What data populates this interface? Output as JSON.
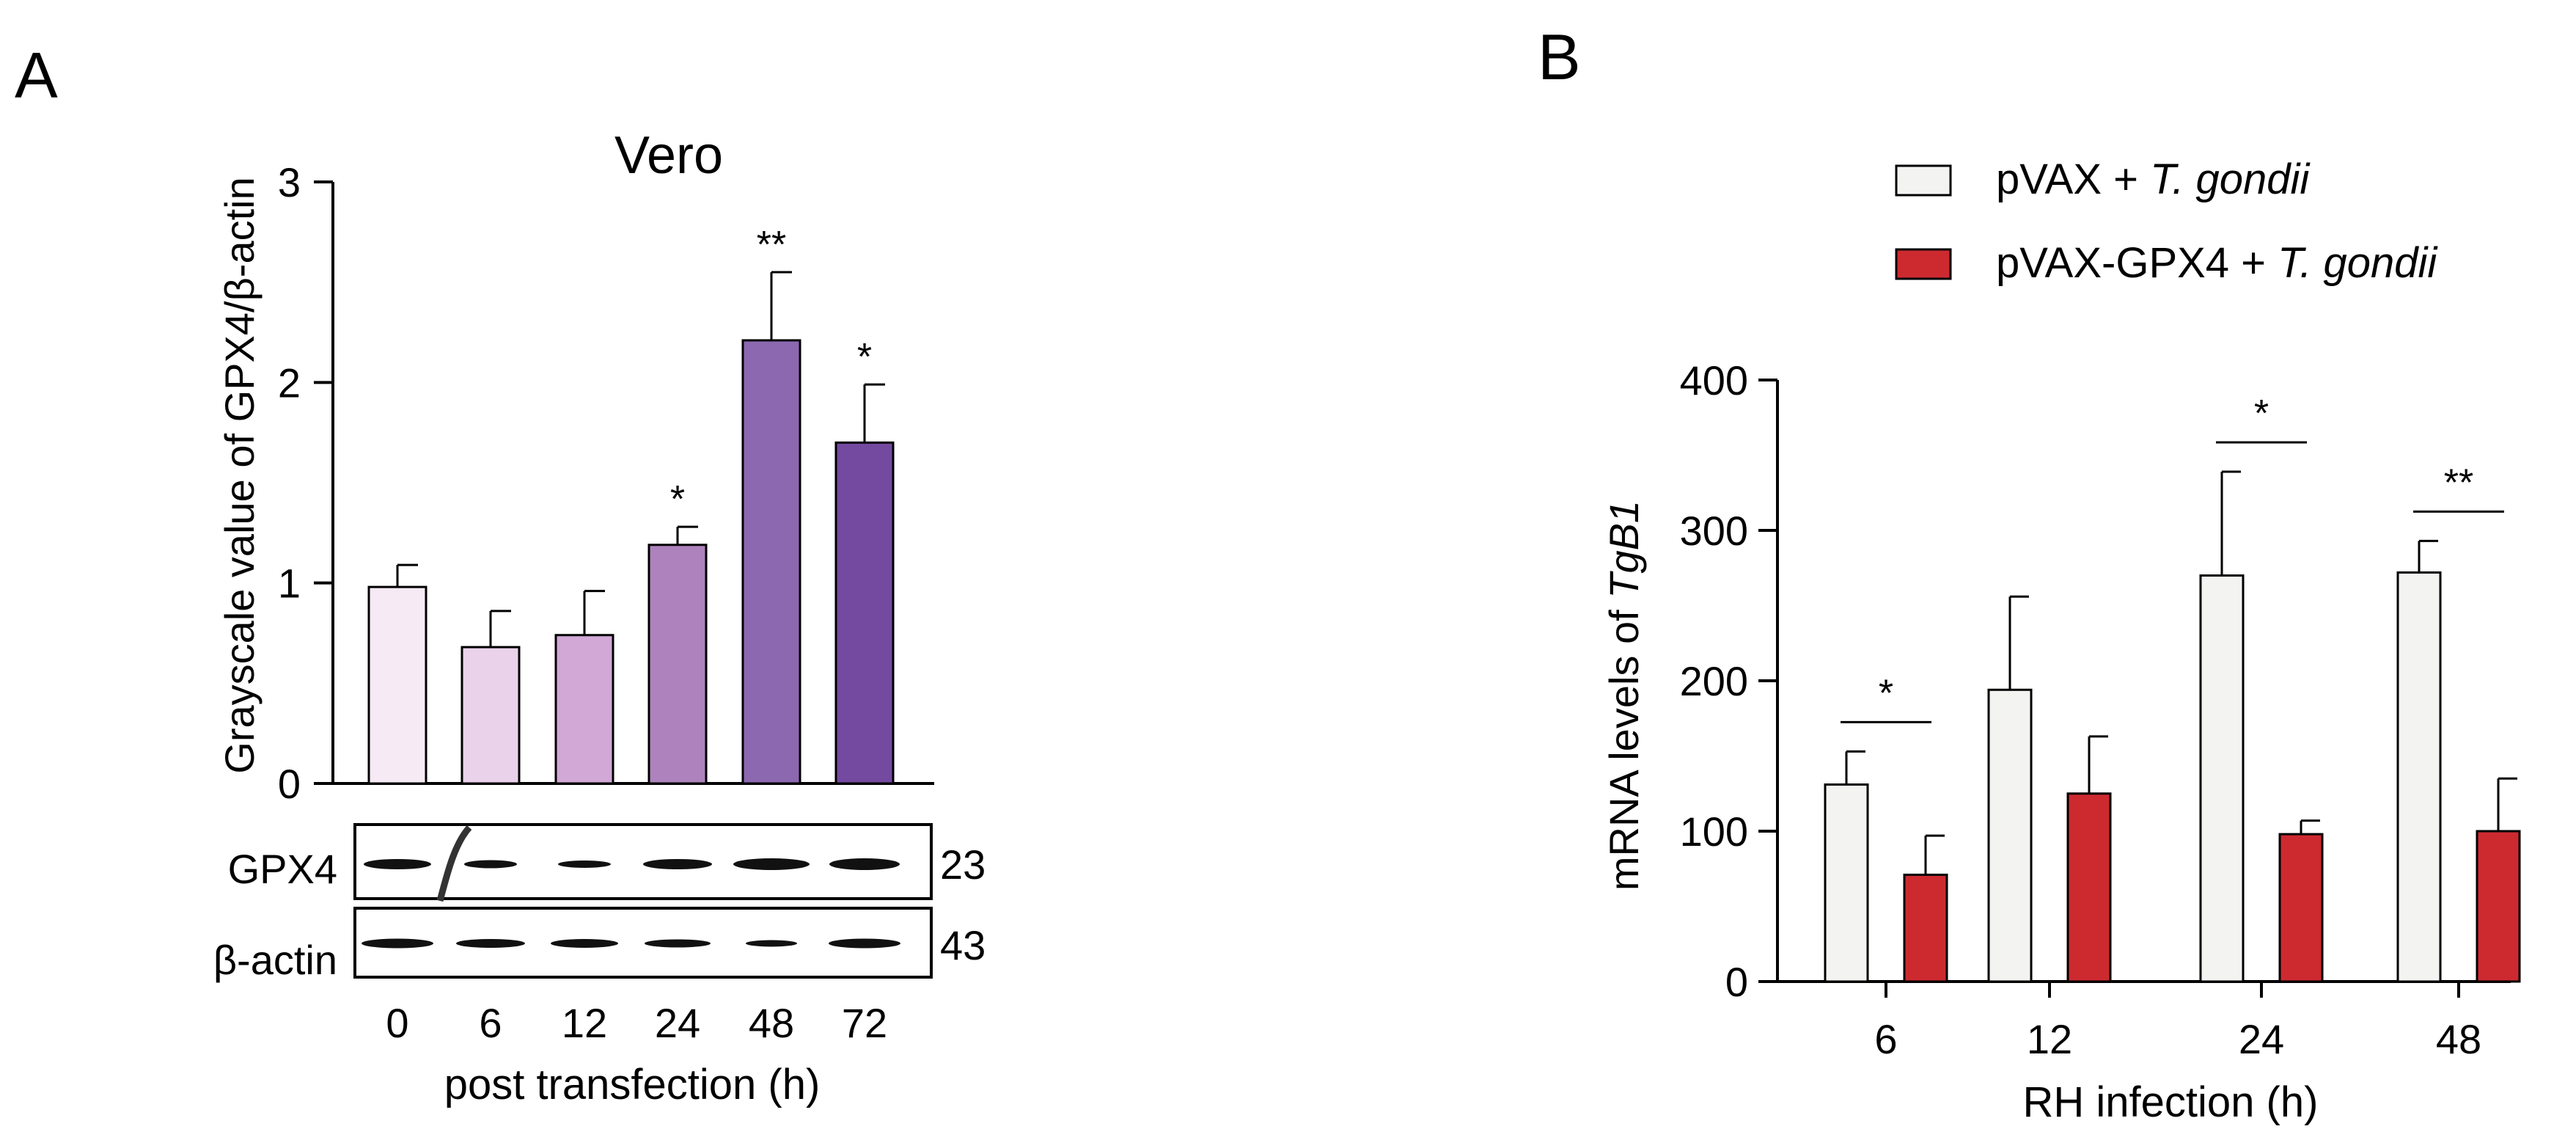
{
  "panel_labels": [
    "A",
    "B"
  ],
  "chart_data": [
    {
      "type": "bar",
      "panel": "A",
      "title": "Vero",
      "xlabel": "post transfection (h)",
      "ylabel": "Grayscale value of GPX4/β-actin",
      "categories": [
        "0",
        "6",
        "12",
        "24",
        "48",
        "72"
      ],
      "values": [
        0.98,
        0.68,
        0.74,
        1.19,
        2.21,
        1.7
      ],
      "errors": [
        0.11,
        0.18,
        0.22,
        0.09,
        0.34,
        0.29
      ],
      "significance": [
        "",
        "",
        "",
        "*",
        "**",
        "*"
      ],
      "bar_colors": [
        "#f6eaf4",
        "#ead2ea",
        "#d2a8d6",
        "#ae83bd",
        "#8c68b0",
        "#744aa0"
      ],
      "ylim": [
        0,
        3
      ],
      "yticks": [
        0,
        1,
        2,
        3
      ],
      "blot": {
        "rows": [
          {
            "label": "GPX4",
            "kda": "23"
          },
          {
            "label": "β-actin",
            "kda": "43"
          }
        ]
      }
    },
    {
      "type": "bar",
      "panel": "B",
      "title": "",
      "xlabel": "RH infection (h)",
      "ylabel_prefix": "mRNA levels of ",
      "ylabel_italic": "TgB1",
      "categories": [
        "6",
        "12",
        "24",
        "48"
      ],
      "series": [
        {
          "name_prefix": "pVAX + ",
          "name_italic": "T. gondii",
          "color": "#f3f4f2",
          "values": [
            131,
            194,
            270,
            272
          ],
          "errors": [
            22,
            62,
            69,
            21
          ]
        },
        {
          "name_prefix": "pVAX-GPX4 + ",
          "name_italic": "T. gondii",
          "color": "#cd2a30",
          "values": [
            71,
            125,
            98,
            100
          ],
          "errors": [
            26,
            38,
            9,
            35
          ]
        }
      ],
      "significance": [
        "*",
        "",
        "*",
        "**"
      ],
      "ylim": [
        0,
        400
      ],
      "yticks": [
        0,
        100,
        200,
        300,
        400
      ],
      "legend_position": "top"
    }
  ]
}
